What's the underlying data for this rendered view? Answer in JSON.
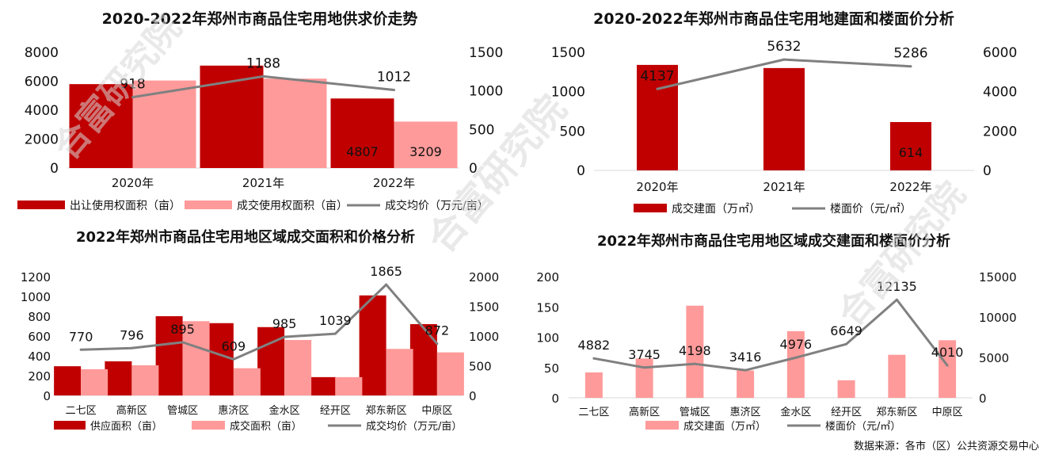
{
  "colors": {
    "dark_bar": "#c00000",
    "light_bar": "#ff9a9a",
    "line": "#808080",
    "watermark": "#d8d8d8"
  },
  "watermark": "合富研究院",
  "source": "数据来源：各市（区）公共资源交易中心",
  "chart_data": [
    {
      "type": "bar",
      "title": "2020-2022年郑州市商品住宅用地供求价走势",
      "categories": [
        "2020年",
        "2021年",
        "2022年"
      ],
      "series": [
        {
          "name": "出让使用权面积（亩）",
          "kind": "bar",
          "axis": "left",
          "color": "#c00000",
          "values": [
            5800,
            7080,
            4807
          ],
          "labels": [
            "",
            "",
            "4807"
          ]
        },
        {
          "name": "成交使用权面积（亩）",
          "kind": "bar",
          "axis": "left",
          "color": "#ff9a9a",
          "values": [
            6050,
            6180,
            3209
          ],
          "labels": [
            "",
            "",
            "3209"
          ]
        },
        {
          "name": "成交均价（万元/亩）",
          "kind": "line",
          "axis": "right",
          "color": "#808080",
          "values": [
            918,
            1188,
            1012
          ],
          "labels": [
            "918",
            "1188",
            "1012"
          ]
        }
      ],
      "ylim": [
        0,
        8000
      ],
      "yticks": [
        0,
        2000,
        4000,
        6000,
        8000
      ],
      "y2lim": [
        0,
        1500
      ],
      "y2ticks": [
        0,
        500,
        1000,
        1500
      ]
    },
    {
      "type": "bar",
      "title": "2020-2022年郑州市商品住宅用地建面和楼面价分析",
      "categories": [
        "2020年",
        "2021年",
        "2022年"
      ],
      "series": [
        {
          "name": "成交建面（万㎡）",
          "kind": "bar",
          "axis": "left",
          "color": "#c00000",
          "values": [
            1340,
            1300,
            614
          ],
          "labels": [
            "",
            "",
            "614"
          ]
        },
        {
          "name": "楼面价（元/㎡）",
          "kind": "line",
          "axis": "right",
          "color": "#808080",
          "values": [
            4137,
            5632,
            5286
          ],
          "labels": [
            "4137",
            "5632",
            "5286"
          ]
        }
      ],
      "ylim": [
        0,
        1500
      ],
      "yticks": [
        0,
        500,
        1000,
        1500
      ],
      "y2lim": [
        0,
        6000
      ],
      "y2ticks": [
        0,
        2000,
        4000,
        6000
      ]
    },
    {
      "type": "bar",
      "title": "2022年郑州市商品住宅用地区域成交面积和价格分析",
      "categories": [
        "二七区",
        "高新区",
        "管城区",
        "惠济区",
        "金水区",
        "经开区",
        "郑东新区",
        "中原区"
      ],
      "series": [
        {
          "name": "供应面积（亩）",
          "kind": "bar",
          "axis": "left",
          "color": "#c00000",
          "values": [
            295,
            345,
            800,
            730,
            690,
            185,
            1010,
            720
          ]
        },
        {
          "name": "成交面积（亩）",
          "kind": "bar",
          "axis": "left",
          "color": "#ff9a9a",
          "values": [
            265,
            305,
            750,
            275,
            560,
            185,
            470,
            435
          ]
        },
        {
          "name": "成交均价（万元/亩）",
          "kind": "line",
          "axis": "right",
          "color": "#808080",
          "values": [
            770,
            796,
            895,
            609,
            985,
            1039,
            1865,
            872
          ],
          "labels": [
            "770",
            "796",
            "895",
            "609",
            "985",
            "1039",
            "1865",
            "872"
          ]
        }
      ],
      "ylim": [
        0,
        1200
      ],
      "yticks": [
        0,
        200,
        400,
        600,
        800,
        1000,
        1200
      ],
      "y2lim": [
        0,
        2000
      ],
      "y2ticks": [
        0,
        500,
        1000,
        1500,
        2000
      ]
    },
    {
      "type": "bar",
      "title": "2022年郑州市商品住宅用地区域成交建面和楼面价分析",
      "categories": [
        "二七区",
        "高新区",
        "管城区",
        "惠济区",
        "金水区",
        "经开区",
        "郑东新区",
        "中原区"
      ],
      "series": [
        {
          "name": "成交建面（万㎡）",
          "kind": "bar",
          "axis": "left",
          "color": "#ff9a9a",
          "values": [
            42,
            65,
            152,
            45,
            110,
            29,
            71,
            95
          ]
        },
        {
          "name": "楼面价（元/㎡）",
          "kind": "line",
          "axis": "right",
          "color": "#808080",
          "values": [
            4882,
            3745,
            4198,
            3416,
            4976,
            6649,
            12135,
            4010
          ],
          "labels": [
            "4882",
            "3745",
            "4198",
            "3416",
            "4976",
            "6649",
            "12135",
            "4010"
          ]
        }
      ],
      "ylim": [
        0,
        200
      ],
      "yticks": [
        0,
        50,
        100,
        150,
        200
      ],
      "y2lim": [
        0,
        15000
      ],
      "y2ticks": [
        0,
        5000,
        10000,
        15000
      ]
    }
  ]
}
